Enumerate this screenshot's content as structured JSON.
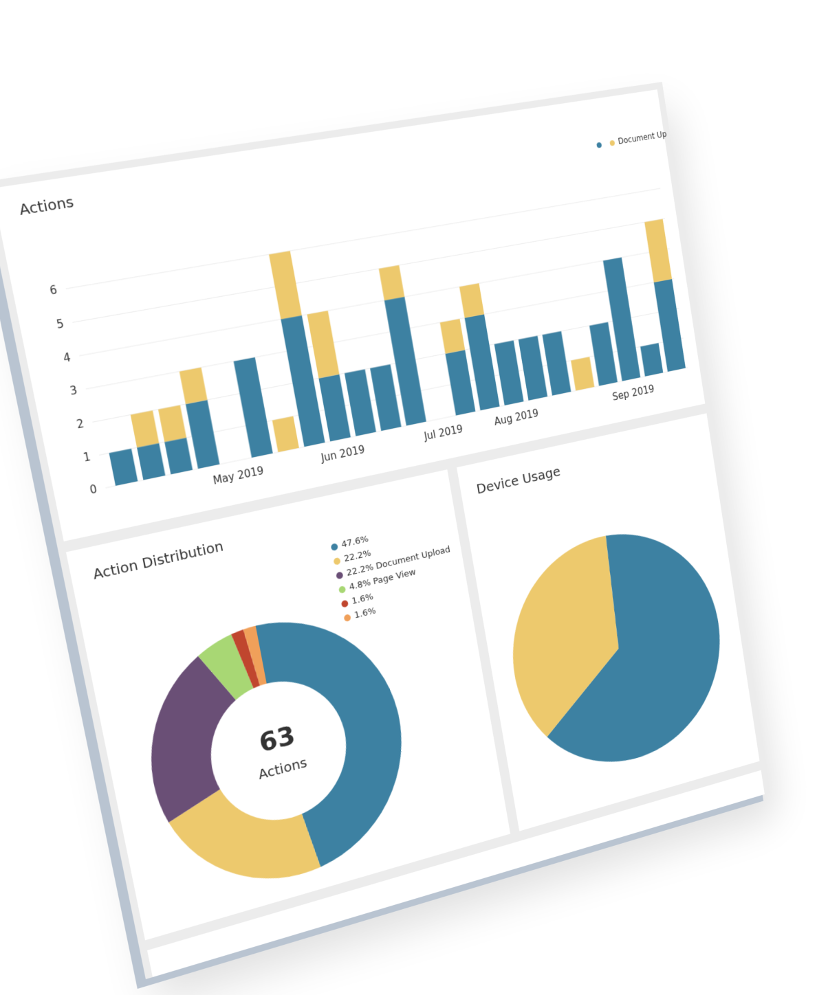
{
  "chart_data": [
    {
      "type": "bar",
      "title": "Actions",
      "stacked": true,
      "categories": [
        null,
        null,
        null,
        null,
        "May 2019",
        null,
        null,
        null,
        "Jun 2019",
        null,
        null,
        null,
        "Jul 2019",
        null,
        null,
        "Aug 2019",
        null,
        null,
        null,
        null,
        "Sep 2019",
        null,
        null
      ],
      "series": [
        {
          "color": "#3d81a2",
          "values": [
            1,
            1,
            1,
            2,
            0,
            3,
            0,
            4,
            2,
            2,
            2,
            4,
            0,
            2,
            3,
            2,
            2,
            2,
            0,
            2,
            4,
            1,
            3
          ]
        },
        {
          "name": "Document Up",
          "color": "#edc96d",
          "values": [
            0,
            1,
            1,
            1,
            0,
            0,
            1,
            2,
            2,
            0,
            0,
            1,
            0,
            1,
            1,
            0,
            0,
            0,
            1,
            0,
            0,
            0,
            2
          ]
        }
      ],
      "ylim": [
        0,
        7
      ],
      "yticks": [
        0,
        1,
        2,
        3,
        4,
        5,
        6
      ],
      "grid": true,
      "legend": "top-right"
    },
    {
      "type": "donut",
      "title": "Action Distribution",
      "center_value": 63,
      "center_label": "Actions",
      "values": [
        47.6,
        22.2,
        22.2,
        4.8,
        1.6,
        1.6
      ],
      "value_labels": [
        "47.6%",
        "22.2%",
        "22.2% Document Upload",
        "4.8% Page View",
        "1.6%",
        "1.6%"
      ],
      "colors": [
        "#3d81a2",
        "#edc96d",
        "#6a4f76",
        "#a8d774",
        "#c0462e",
        "#f0a05a"
      ]
    },
    {
      "type": "pie",
      "title": "Device Usage",
      "values": [
        64,
        36
      ],
      "colors": [
        "#3d81a2",
        "#edc96d"
      ]
    }
  ]
}
